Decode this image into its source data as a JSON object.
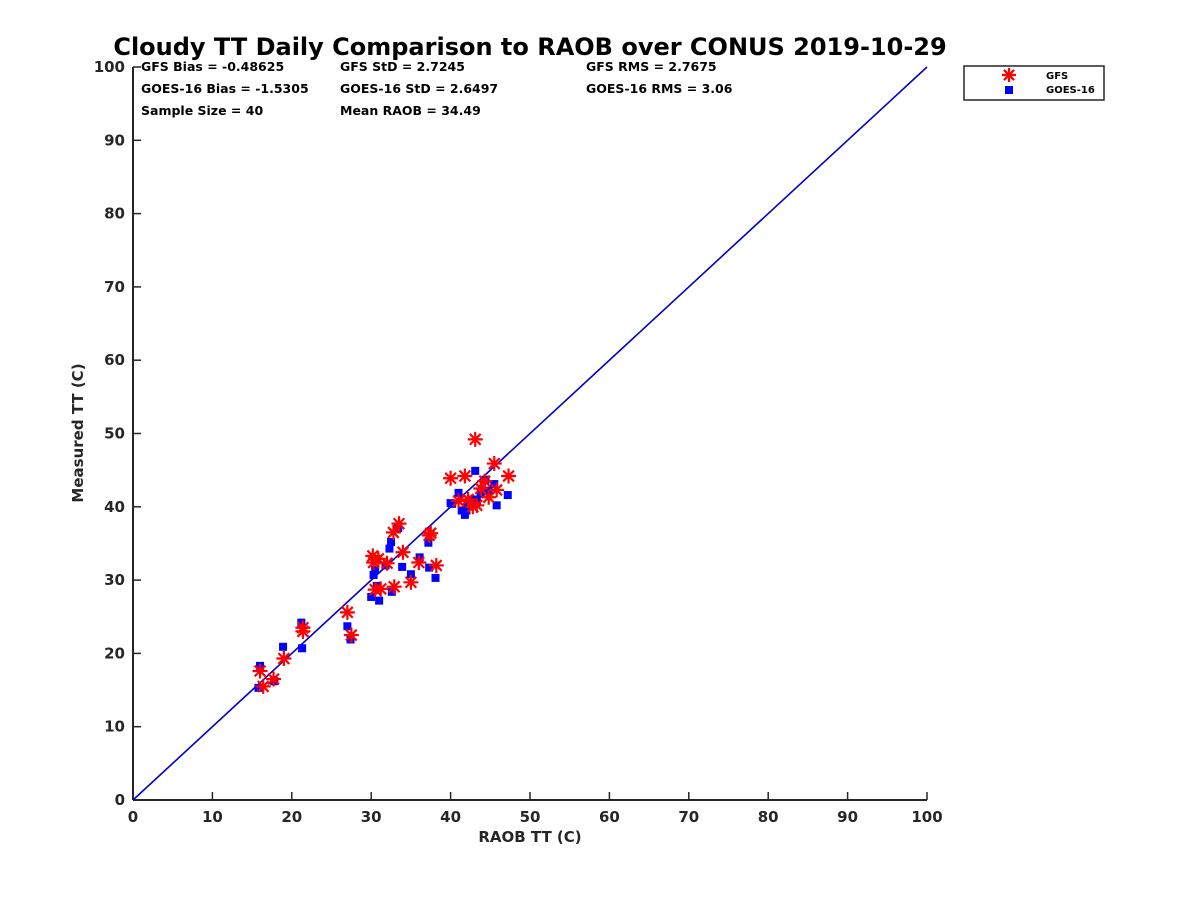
{
  "chart_data": {
    "type": "scatter",
    "title": "Cloudy TT Daily Comparison to RAOB over CONUS 2019-10-29",
    "xlabel": "RAOB TT (C)",
    "ylabel": "Measured TT (C)",
    "xlim": [
      0,
      100
    ],
    "ylim": [
      0,
      100
    ],
    "xticks": [
      "0",
      "10",
      "20",
      "30",
      "40",
      "50",
      "60",
      "70",
      "80",
      "90",
      "100"
    ],
    "yticks": [
      "0",
      "10",
      "20",
      "30",
      "40",
      "50",
      "60",
      "70",
      "80",
      "90",
      "100"
    ],
    "grid": false,
    "legend_position": "top-right, outside plot",
    "reference_line": {
      "from": [
        0,
        0
      ],
      "to": [
        100,
        100
      ],
      "color": "#0000cc"
    },
    "stats": {
      "gfs_bias": "GFS Bias = -0.48625",
      "gfs_std": "GFS StD = 2.7245",
      "gfs_rms": "GFS RMS = 2.7675",
      "goes_bias": "GOES-16 Bias = -1.5305",
      "goes_std": "GOES-16 StD = 2.6497",
      "goes_rms": "GOES-16 RMS = 3.06",
      "sample_size": "Sample Size = 40",
      "mean_raob": "Mean RAOB = 34.49"
    },
    "series": [
      {
        "name": "GFS",
        "marker": "asterisk",
        "color": "#ff0000",
        "points": [
          [
            16,
            17.6
          ],
          [
            16.4,
            15.5
          ],
          [
            17.7,
            16.5
          ],
          [
            19,
            19.3
          ],
          [
            21.4,
            23.5
          ],
          [
            21.4,
            23.0
          ],
          [
            27.0,
            25.6
          ],
          [
            27.5,
            22.5
          ],
          [
            30.2,
            33.3
          ],
          [
            30.3,
            32.4
          ],
          [
            30.5,
            28.7
          ],
          [
            30.9,
            32.9
          ],
          [
            31.2,
            28.8
          ],
          [
            32.0,
            32.3
          ],
          [
            32.8,
            36.5
          ],
          [
            32.9,
            29.1
          ],
          [
            33.5,
            37.7
          ],
          [
            34.0,
            33.8
          ],
          [
            35.0,
            29.7
          ],
          [
            36.0,
            32.4
          ],
          [
            37.3,
            36.1
          ],
          [
            37.5,
            36.4
          ],
          [
            38.2,
            32.0
          ],
          [
            40.0,
            43.9
          ],
          [
            41.0,
            40.8
          ],
          [
            41.8,
            44.2
          ],
          [
            42.2,
            41.0
          ],
          [
            42.8,
            40.0
          ],
          [
            43.1,
            49.2
          ],
          [
            43.3,
            40.2
          ],
          [
            43.8,
            42.5
          ],
          [
            44.3,
            43.5
          ],
          [
            44.8,
            41.3
          ],
          [
            45.5,
            45.9
          ],
          [
            45.8,
            42.3
          ],
          [
            47.3,
            44.2
          ]
        ]
      },
      {
        "name": "GOES-16",
        "marker": "square",
        "color": "#0000ff",
        "points": [
          [
            15.8,
            15.3
          ],
          [
            16.0,
            18.3
          ],
          [
            17.8,
            16.2
          ],
          [
            18.9,
            20.9
          ],
          [
            21.2,
            24.2
          ],
          [
            21.3,
            20.7
          ],
          [
            27.0,
            23.7
          ],
          [
            27.4,
            21.9
          ],
          [
            30.0,
            27.7
          ],
          [
            30.3,
            30.7
          ],
          [
            30.5,
            31.4
          ],
          [
            30.7,
            29.2
          ],
          [
            31.0,
            27.2
          ],
          [
            31.8,
            32.0
          ],
          [
            32.3,
            34.3
          ],
          [
            32.5,
            35.2
          ],
          [
            32.6,
            28.4
          ],
          [
            33.4,
            37.1
          ],
          [
            33.9,
            31.8
          ],
          [
            35.0,
            30.8
          ],
          [
            36.1,
            33.1
          ],
          [
            37.2,
            35.1
          ],
          [
            37.3,
            31.7
          ],
          [
            38.1,
            30.3
          ],
          [
            40.0,
            40.5
          ],
          [
            41.0,
            41.9
          ],
          [
            41.4,
            39.5
          ],
          [
            41.8,
            38.9
          ],
          [
            42.2,
            40.1
          ],
          [
            42.8,
            41.0
          ],
          [
            43.1,
            44.9
          ],
          [
            43.3,
            40.8
          ],
          [
            43.8,
            41.8
          ],
          [
            44.4,
            43.7
          ],
          [
            44.8,
            42.2
          ],
          [
            45.5,
            43.1
          ],
          [
            45.8,
            40.2
          ],
          [
            47.2,
            41.6
          ],
          [
            42.0,
            39.5
          ],
          [
            40.2,
            40.4
          ]
        ]
      }
    ]
  }
}
